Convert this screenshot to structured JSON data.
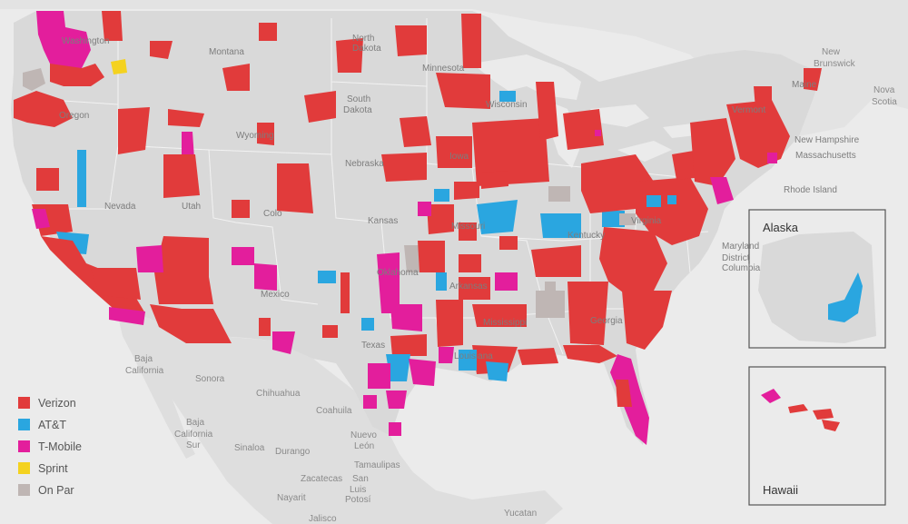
{
  "colors": {
    "verizon": "#e13b3b",
    "att": "#2aa6e0",
    "tmobile": "#e31e9c",
    "sprint": "#f4d21f",
    "onpar": "#bfb6b4",
    "land": "#dcdcdc",
    "water": "#ebebeb"
  },
  "legend": [
    {
      "key": "verizon",
      "label": "Verizon"
    },
    {
      "key": "att",
      "label": "AT&T"
    },
    {
      "key": "tmobile",
      "label": "T-Mobile"
    },
    {
      "key": "sprint",
      "label": "Sprint"
    },
    {
      "key": "onpar",
      "label": "On Par"
    }
  ],
  "insets": {
    "alaska": "Alaska",
    "hawaii": "Hawaii"
  },
  "state_labels": {
    "montana": "Montana",
    "north_dakota_1": "North",
    "north_dakota_2": "Dakota",
    "south_dakota_1": "South",
    "south_dakota_2": "Dakota",
    "minnesota": "Minnesota",
    "wisconsin": "Wisconsin",
    "wyoming": "Wyoming",
    "nebraska": "Nebraska",
    "nevada": "Nevada",
    "utah": "Utah",
    "kansas": "Kansas",
    "missouri": "Missouri",
    "kentucky": "Kentucky",
    "virginia": "Virginia",
    "oklahoma": "Oklahoma",
    "arkansas": "Arkansas",
    "mississippi": "Mississippi",
    "texas": "Texas",
    "louisiana": "Louisiana",
    "georgia": "Georgia",
    "new_mexico": "Mexico",
    "oregon": "Oregon",
    "washington": "Washington",
    "iowa": "Iowa",
    "colorado": "Colo",
    "vermont": "Vermont",
    "maine": "Maine",
    "new_hampshire": "New Hampshire",
    "massachusetts": "Massachusetts",
    "rhode_island": "Rhode Island",
    "maryland": "Maryland",
    "district_1": "District",
    "district_2": "Columbia"
  },
  "region_labels": {
    "new_brunswick_1": "New",
    "new_brunswick_2": "Brunswick",
    "nova_scotia_1": "Nova",
    "nova_scotia_2": "Scotia",
    "baja_ca_1": "Baja",
    "baja_ca_2": "California",
    "baja_cs_1": "Baja",
    "baja_cs_2": "California",
    "baja_cs_3": "Sur",
    "sonora": "Sonora",
    "chihuahua": "Chihuahua",
    "coahuila": "Coahuila",
    "nuevo_leon_1": "Nuevo",
    "nuevo_leon_2": "León",
    "tamaulipas": "Tamaulipas",
    "sinaloa": "Sinaloa",
    "durango": "Durango",
    "zacatecas": "Zacatecas",
    "san_luis_1": "San",
    "san_luis_2": "Luis",
    "san_luis_3": "Potosí",
    "nayarit": "Nayarit",
    "jalisco": "Jalisco",
    "yucatan": "Yucatan"
  }
}
